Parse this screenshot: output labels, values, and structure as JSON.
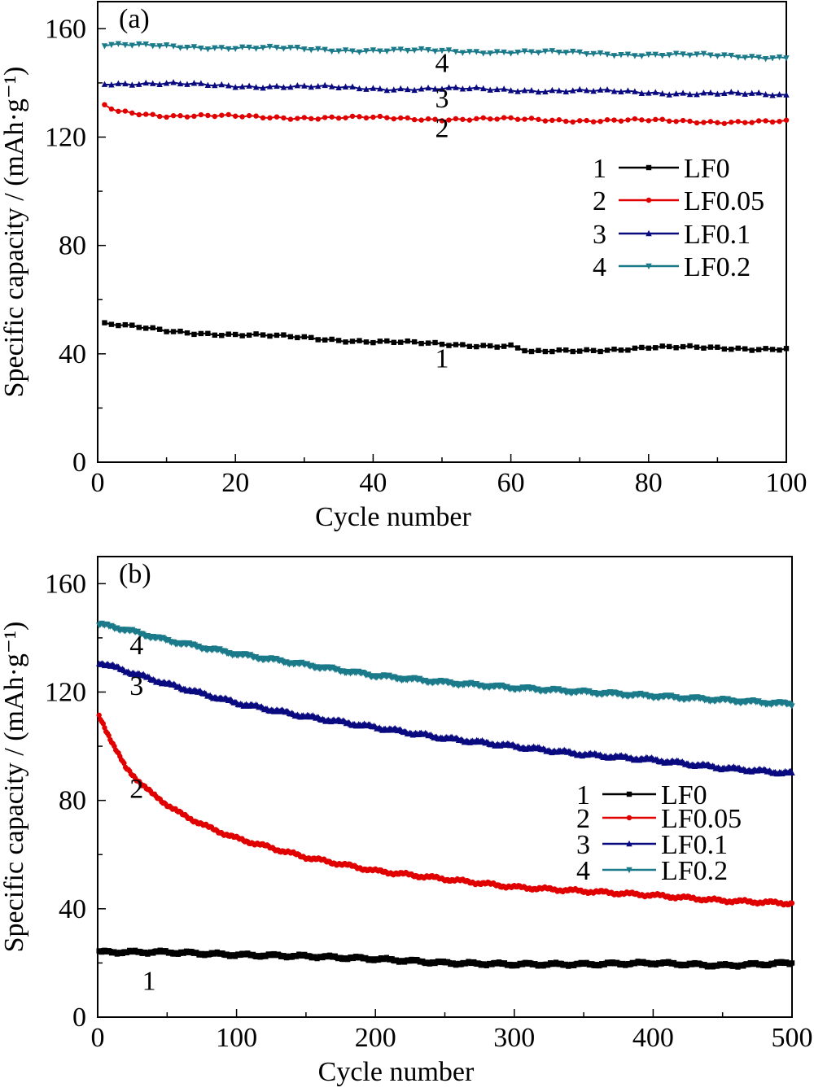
{
  "chart_data": [
    {
      "type": "line",
      "panel_label": "(a)",
      "xlabel": "Cycle number",
      "ylabel": "Specific capacity / (mAh·g⁻¹)",
      "xlim": [
        0,
        100
      ],
      "ylim": [
        0,
        170
      ],
      "xticks": [
        0,
        20,
        40,
        60,
        80,
        100
      ],
      "yticks": [
        0,
        40,
        80,
        120,
        160
      ],
      "legend_position": "center-right",
      "series": [
        {
          "name": "LF0",
          "legend_number": "1",
          "color": "#000000",
          "marker": "square",
          "x": [
            1,
            10,
            20,
            30,
            40,
            50,
            60,
            63,
            70,
            80,
            90,
            100
          ],
          "y": [
            51,
            48.5,
            47,
            46,
            44.5,
            43.5,
            43,
            40.5,
            41,
            42.5,
            42,
            42
          ]
        },
        {
          "name": "LF0.05",
          "legend_number": "2",
          "color": "#e00000",
          "marker": "circle",
          "x": [
            1,
            3,
            10,
            20,
            40,
            60,
            80,
            100
          ],
          "y": [
            131.5,
            129.5,
            128,
            127.5,
            127,
            126.5,
            126,
            125.5
          ]
        },
        {
          "name": "LF0.1",
          "legend_number": "3",
          "color": "#0a0a80",
          "marker": "triangle-up",
          "x": [
            1,
            20,
            40,
            60,
            80,
            100
          ],
          "y": [
            140,
            139,
            138,
            137.5,
            136.5,
            135.5
          ]
        },
        {
          "name": "LF0.2",
          "legend_number": "4",
          "color": "#1a7a8a",
          "marker": "triangle-down",
          "x": [
            1,
            20,
            40,
            60,
            80,
            100
          ],
          "y": [
            154,
            153,
            152,
            151.5,
            150.5,
            149.5
          ]
        }
      ],
      "curve_labels": [
        {
          "text": "1",
          "x": 50,
          "y": 35
        },
        {
          "text": "2",
          "x": 50,
          "y": 120
        },
        {
          "text": "3",
          "x": 50,
          "y": 131
        },
        {
          "text": "4",
          "x": 50,
          "y": 144
        }
      ]
    },
    {
      "type": "line",
      "panel_label": "(b)",
      "xlabel": "Cycle number",
      "ylabel": "Specific capacity / (mAh·g⁻¹)",
      "xlim": [
        0,
        500
      ],
      "ylim": [
        0,
        170
      ],
      "xticks": [
        0,
        100,
        200,
        300,
        400,
        500
      ],
      "yticks": [
        0,
        40,
        80,
        120,
        160
      ],
      "legend_position": "right",
      "series": [
        {
          "name": "LF0",
          "legend_number": "1",
          "color": "#000000",
          "marker": "square",
          "x": [
            1,
            50,
            100,
            150,
            200,
            250,
            300,
            350,
            400,
            450,
            500
          ],
          "y": [
            24,
            24,
            23,
            22.5,
            21.5,
            20,
            19.5,
            19.5,
            20,
            19,
            20
          ]
        },
        {
          "name": "LF0.05",
          "legend_number": "2",
          "color": "#e00000",
          "marker": "circle",
          "x": [
            1,
            20,
            40,
            60,
            80,
            100,
            150,
            200,
            250,
            300,
            350,
            400,
            450,
            500
          ],
          "y": [
            111,
            92,
            82,
            75,
            70,
            66,
            59,
            54,
            51,
            48,
            46.5,
            45,
            43,
            42
          ]
        },
        {
          "name": "LF0.1",
          "legend_number": "3",
          "color": "#0a0a80",
          "marker": "triangle-up",
          "x": [
            1,
            50,
            100,
            150,
            200,
            250,
            300,
            350,
            400,
            450,
            500
          ],
          "y": [
            131,
            123,
            116,
            111,
            107,
            103,
            100,
            97,
            95,
            92,
            90
          ]
        },
        {
          "name": "LF0.2",
          "legend_number": "4",
          "color": "#1a7a8a",
          "marker": "triangle-down",
          "x": [
            1,
            20,
            50,
            100,
            150,
            200,
            250,
            300,
            350,
            400,
            450,
            500
          ],
          "y": [
            145,
            143,
            139,
            134,
            130,
            126,
            123.5,
            121.5,
            120,
            118.5,
            117,
            115.5
          ]
        }
      ],
      "curve_labels": [
        {
          "text": "1",
          "x": 37,
          "y": 10
        },
        {
          "text": "2",
          "x": 28,
          "y": 81
        },
        {
          "text": "3",
          "x": 28,
          "y": 119
        },
        {
          "text": "4",
          "x": 28,
          "y": 134
        }
      ]
    }
  ]
}
